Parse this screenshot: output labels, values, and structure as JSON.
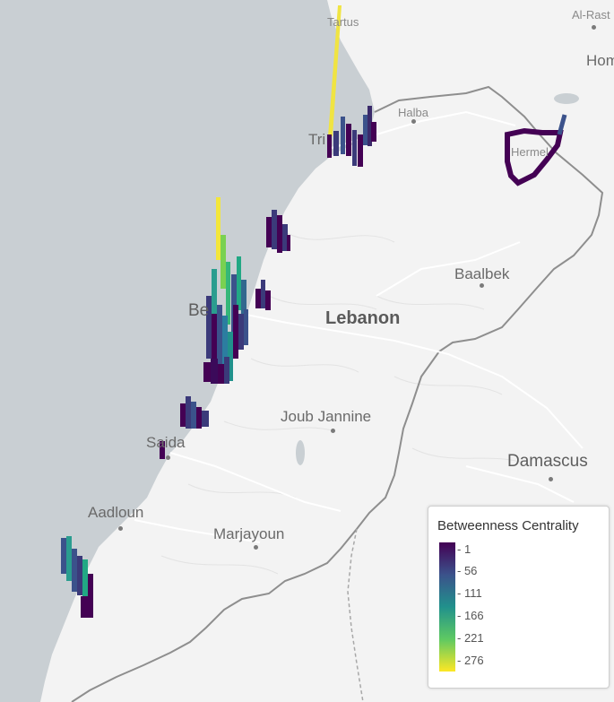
{
  "map": {
    "places": [
      {
        "id": "tartus",
        "label": "Tartus"
      },
      {
        "id": "al-rastan",
        "label": "Al-Rast"
      },
      {
        "id": "homs",
        "label": "Hom"
      },
      {
        "id": "halba",
        "label": "Halba"
      },
      {
        "id": "tripoli",
        "label": "Tri"
      },
      {
        "id": "hermel",
        "label": "Hermel"
      },
      {
        "id": "baalbek",
        "label": "Baalbek"
      },
      {
        "id": "lebanon",
        "label": "Lebanon"
      },
      {
        "id": "beirut",
        "label": "Be"
      },
      {
        "id": "joub-jannine",
        "label": "Joub Jannine"
      },
      {
        "id": "saida",
        "label": "Saida"
      },
      {
        "id": "damascus",
        "label": "Damascus"
      },
      {
        "id": "aadloun",
        "label": "Aadloun"
      },
      {
        "id": "marjayoun",
        "label": "Marjayoun"
      }
    ]
  },
  "legend": {
    "title": "Betweenness Centrality",
    "ticks": [
      "1",
      "56",
      "111",
      "166",
      "221",
      "276"
    ],
    "colors": [
      "#440154",
      "#3b528b",
      "#21918c",
      "#5ec962",
      "#fde725"
    ]
  }
}
